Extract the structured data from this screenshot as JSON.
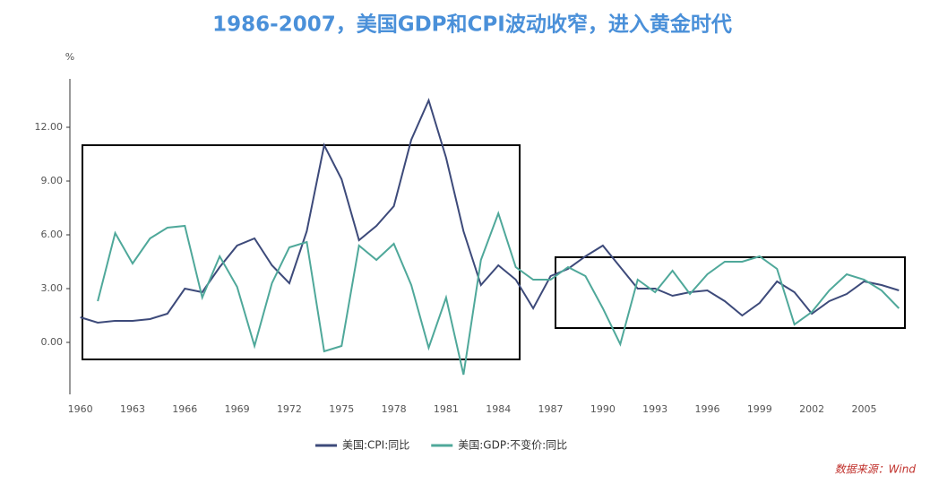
{
  "chart_data": {
    "type": "line",
    "title": "1986-2007，美国GDP和CPI波动收窄，进入黄金时代",
    "y_unit": "%",
    "source": "数据来源：Wind",
    "x": [
      1960,
      1961,
      1962,
      1963,
      1964,
      1965,
      1966,
      1967,
      1968,
      1969,
      1970,
      1971,
      1972,
      1973,
      1974,
      1975,
      1976,
      1977,
      1978,
      1979,
      1980,
      1981,
      1982,
      1983,
      1984,
      1985,
      1986,
      1987,
      1988,
      1989,
      1990,
      1991,
      1992,
      1993,
      1994,
      1995,
      1996,
      1997,
      1998,
      1999,
      2000,
      2001,
      2002,
      2003,
      2004,
      2005,
      2006,
      2007
    ],
    "series": [
      {
        "name": "美国:CPI:同比",
        "color": "#3d4a7a",
        "values": [
          1.4,
          1.1,
          1.2,
          1.2,
          1.3,
          1.6,
          3.0,
          2.8,
          4.2,
          5.4,
          5.8,
          4.3,
          3.3,
          6.2,
          11.0,
          9.1,
          5.7,
          6.5,
          7.6,
          11.3,
          13.5,
          10.3,
          6.2,
          3.2,
          4.3,
          3.5,
          1.9,
          3.7,
          4.1,
          4.8,
          5.4,
          4.2,
          3.0,
          3.0,
          2.6,
          2.8,
          2.9,
          2.3,
          1.5,
          2.2,
          3.4,
          2.8,
          1.6,
          2.3,
          2.7,
          3.4,
          3.2,
          2.9
        ]
      },
      {
        "name": "美国:GDP:不变价:同比",
        "color": "#4fa89a",
        "values": [
          null,
          2.3,
          6.1,
          4.4,
          5.8,
          6.4,
          6.5,
          2.5,
          4.8,
          3.1,
          -0.2,
          3.3,
          5.3,
          5.6,
          -0.5,
          -0.2,
          5.4,
          4.6,
          5.5,
          3.2,
          -0.3,
          2.5,
          -1.8,
          4.6,
          7.2,
          4.2,
          3.5,
          3.5,
          4.2,
          3.7,
          1.9,
          -0.1,
          3.5,
          2.8,
          4.0,
          2.7,
          3.8,
          4.5,
          4.5,
          4.8,
          4.1,
          1.0,
          1.7,
          2.9,
          3.8,
          3.5,
          2.9,
          1.9
        ]
      }
    ],
    "xlim": [
      1959.4,
      2007.6
    ],
    "xticks": [
      1960,
      1963,
      1966,
      1969,
      1972,
      1975,
      1978,
      1981,
      1984,
      1987,
      1990,
      1993,
      1996,
      1999,
      2002,
      2005
    ],
    "ylim": [
      -2.9,
      14.7
    ],
    "yticks": [
      {
        "value": 0,
        "label": "0.00"
      },
      {
        "value": 3,
        "label": "3.00"
      },
      {
        "value": 6,
        "label": "6.00"
      },
      {
        "value": 9,
        "label": "9.00"
      },
      {
        "value": 12,
        "label": "12.00"
      }
    ],
    "legend": "bottom"
  }
}
